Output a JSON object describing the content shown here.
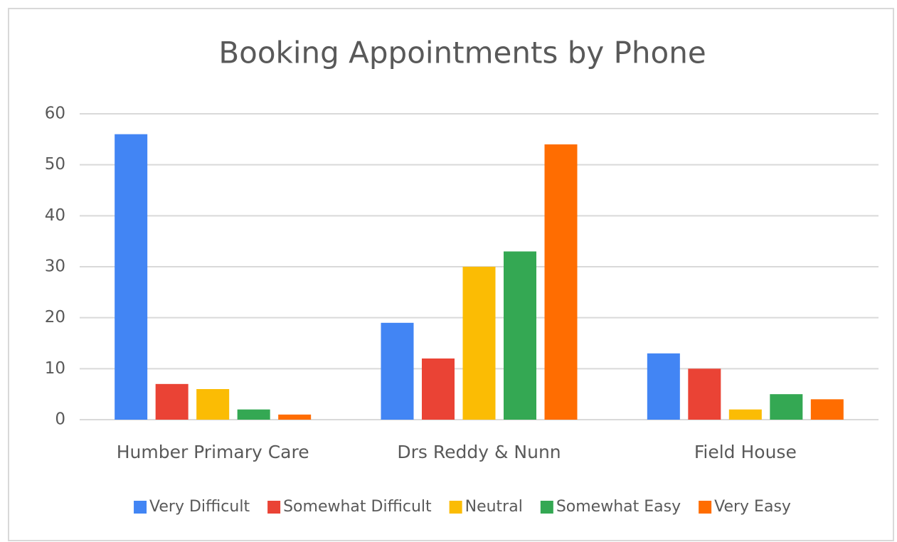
{
  "chart_data": {
    "type": "bar",
    "title": "Booking Appointments by Phone",
    "categories": [
      "Humber Primary Care",
      "Drs Reddy & Nunn",
      "Field House"
    ],
    "series": [
      {
        "name": "Very Difficult",
        "color": "#4285f4",
        "values": [
          56,
          19,
          13
        ]
      },
      {
        "name": "Somewhat Difficult",
        "color": "#ea4335",
        "values": [
          7,
          12,
          10
        ]
      },
      {
        "name": "Neutral",
        "color": "#fbbc04",
        "values": [
          6,
          30,
          2
        ]
      },
      {
        "name": "Somewhat Easy",
        "color": "#34a853",
        "values": [
          2,
          33,
          5
        ]
      },
      {
        "name": "Very Easy",
        "color": "#ff6d01",
        "values": [
          1,
          54,
          4
        ]
      }
    ],
    "ylim": [
      0,
      60
    ],
    "yticks": [
      0,
      10,
      20,
      30,
      40,
      50,
      60
    ],
    "grid": true,
    "legend": "bottom"
  }
}
